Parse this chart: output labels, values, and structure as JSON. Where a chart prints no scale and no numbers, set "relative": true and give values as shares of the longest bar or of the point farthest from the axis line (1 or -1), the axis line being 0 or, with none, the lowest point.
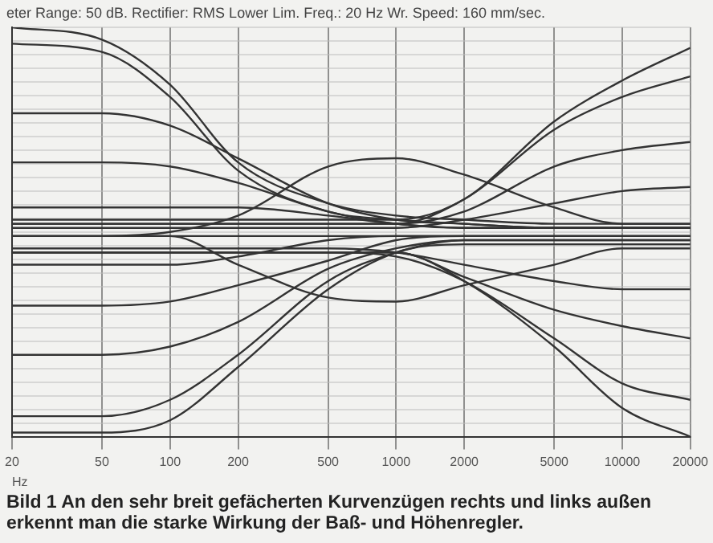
{
  "chart_data": {
    "type": "line",
    "title": "eter Range: 50 dB. Rectifier: RMS Lower Lim. Freq.: 20 Hz Wr. Speed: 160 mm/sec.",
    "xlabel": "Hz",
    "annotations": [
      "Bild 1   An den sehr breit gefächerten Kurvenzügen rechts und links außen erkennt man die starke Wirkung der Baß- und Höhenregler."
    ],
    "relative": true,
    "log": "x",
    "grid": true,
    "legend": false,
    "marker": "none",
    "line_style": "solid",
    "x": [
      20,
      50,
      100,
      200,
      500,
      1000,
      2000,
      5000,
      10000,
      20000
    ],
    "xlim": [
      20,
      20000
    ],
    "xticks": [
      20,
      50,
      100,
      200,
      500,
      1000,
      2000,
      5000,
      10000,
      20000
    ],
    "series": [
      {
        "color": "#333333",
        "values": [
          1,
          0.97,
          0.86,
          0.67,
          0.57,
          0.54,
          0.53,
          0.52,
          0.52,
          0.52
        ]
      },
      {
        "color": "#333333",
        "values": [
          0.96,
          0.94,
          0.83,
          0.65,
          0.55,
          0.53,
          0.52,
          0.51,
          0.51,
          0.51
        ]
      },
      {
        "color": "#333333",
        "values": [
          0.79,
          0.79,
          0.76,
          0.68,
          0.57,
          0.53,
          0.52,
          0.51,
          0.51,
          0.51
        ]
      },
      {
        "color": "#333333",
        "values": [
          0.67,
          0.67,
          0.66,
          0.62,
          0.55,
          0.52,
          0.51,
          0.51,
          0.51,
          0.51
        ]
      },
      {
        "color": "#333333",
        "values": [
          0.56,
          0.56,
          0.56,
          0.56,
          0.54,
          0.52,
          0.51,
          0.51,
          0.51,
          0.51
        ]
      },
      {
        "color": "#333333",
        "values": [
          0.49,
          0.49,
          0.5,
          0.54,
          0.66,
          0.68,
          0.64,
          0.56,
          0.52,
          0.52
        ]
      },
      {
        "color": "#333333",
        "values": [
          0.49,
          0.49,
          0.49,
          0.49,
          0.49,
          0.49,
          0.49,
          0.49,
          0.49,
          0.49
        ]
      },
      {
        "color": "#333333",
        "values": [
          0.49,
          0.49,
          0.49,
          0.42,
          0.34,
          0.33,
          0.37,
          0.42,
          0.46,
          0.46
        ]
      },
      {
        "color": "#333333",
        "values": [
          0.42,
          0.42,
          0.42,
          0.44,
          0.48,
          0.49,
          0.49,
          0.49,
          0.49,
          0.49
        ]
      },
      {
        "color": "#333333",
        "values": [
          0.32,
          0.32,
          0.33,
          0.37,
          0.43,
          0.48,
          0.49,
          0.49,
          0.49,
          0.49
        ]
      },
      {
        "color": "#333333",
        "values": [
          0.2,
          0.2,
          0.22,
          0.28,
          0.41,
          0.46,
          0.48,
          0.48,
          0.48,
          0.48
        ]
      },
      {
        "color": "#333333",
        "values": [
          0.05,
          0.05,
          0.09,
          0.2,
          0.38,
          0.45,
          0.48,
          0.48,
          0.48,
          0.48
        ]
      },
      {
        "color": "#333333",
        "values": [
          0.01,
          0.01,
          0.04,
          0.17,
          0.36,
          0.45,
          0.47,
          0.47,
          0.47,
          0.47
        ]
      },
      {
        "color": "#333333",
        "values": [
          0.53,
          0.53,
          0.53,
          0.53,
          0.53,
          0.53,
          0.58,
          0.77,
          0.87,
          0.95
        ]
      },
      {
        "color": "#333333",
        "values": [
          0.52,
          0.52,
          0.52,
          0.52,
          0.52,
          0.52,
          0.58,
          0.75,
          0.83,
          0.88
        ]
      },
      {
        "color": "#333333",
        "values": [
          0.52,
          0.52,
          0.52,
          0.52,
          0.52,
          0.52,
          0.55,
          0.66,
          0.7,
          0.72
        ]
      },
      {
        "color": "#333333",
        "values": [
          0.51,
          0.51,
          0.51,
          0.51,
          0.51,
          0.51,
          0.53,
          0.57,
          0.6,
          0.61
        ]
      },
      {
        "color": "#333333",
        "values": [
          0.46,
          0.46,
          0.46,
          0.46,
          0.46,
          0.45,
          0.42,
          0.38,
          0.36,
          0.36
        ]
      },
      {
        "color": "#333333",
        "values": [
          0.45,
          0.45,
          0.45,
          0.45,
          0.45,
          0.45,
          0.39,
          0.31,
          0.27,
          0.24
        ]
      },
      {
        "color": "#333333",
        "values": [
          0.45,
          0.45,
          0.45,
          0.45,
          0.45,
          0.44,
          0.38,
          0.24,
          0.13,
          0.09
        ]
      },
      {
        "color": "#333333",
        "values": [
          0.45,
          0.45,
          0.45,
          0.45,
          0.45,
          0.45,
          0.38,
          0.22,
          0.07,
          0
        ]
      }
    ]
  }
}
